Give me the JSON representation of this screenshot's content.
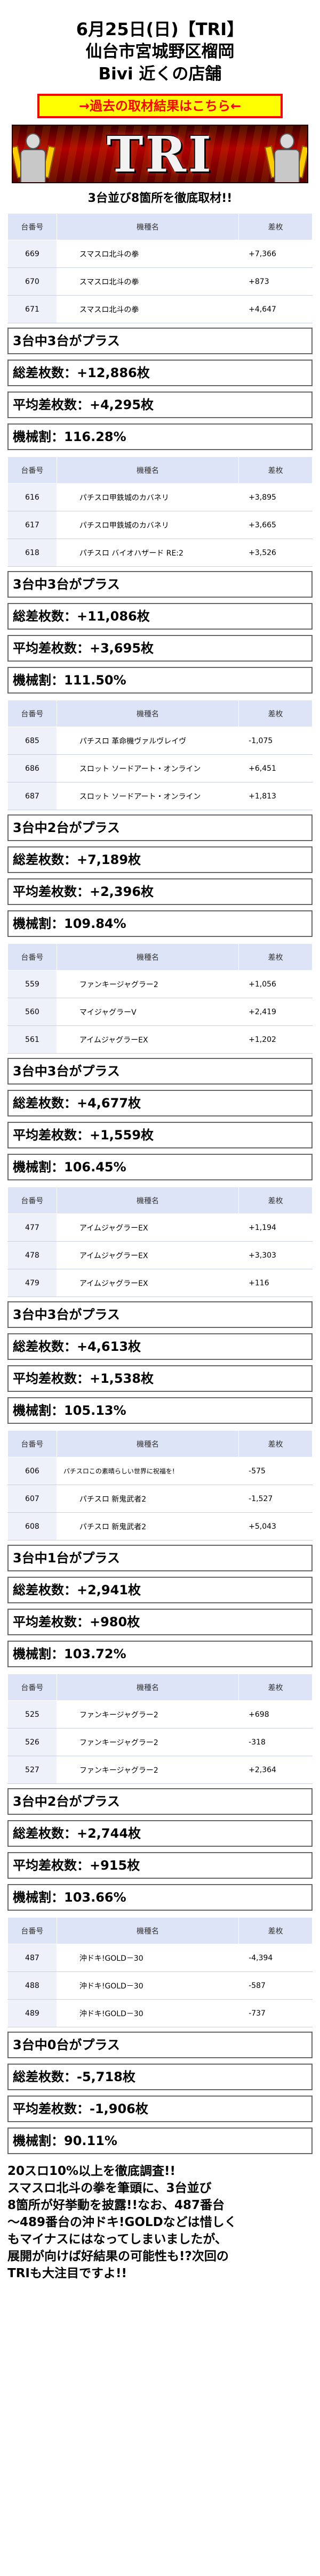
{
  "header": {
    "line1": "6月25日(日)【TRI】",
    "line2": "仙台市宮城野区榴岡",
    "line3": "Bivi 近くの店舗"
  },
  "past_link": "→過去の取材結果はこちら←",
  "logo_text": "TRI",
  "intro": "3台並び8箇所を徹底取材!!",
  "columns": {
    "num": "台番号",
    "name": "機種名",
    "diff": "差枚"
  },
  "groups": [
    {
      "rows": [
        {
          "num": "669",
          "name": "スマスロ北斗の拳",
          "diff": "+7,366"
        },
        {
          "num": "670",
          "name": "スマスロ北斗の拳",
          "diff": "+873"
        },
        {
          "num": "671",
          "name": "スマスロ北斗の拳",
          "diff": "+4,647"
        }
      ],
      "plus": "3台中3台がプラス",
      "total": "総差枚数：+12,886枚",
      "average": "平均差枚数：+4,295枚",
      "rate": "機械割：116.28%"
    },
    {
      "rows": [
        {
          "num": "616",
          "name": "パチスロ甲鉄城のカバネリ",
          "diff": "+3,895"
        },
        {
          "num": "617",
          "name": "パチスロ甲鉄城のカバネリ",
          "diff": "+3,665"
        },
        {
          "num": "618",
          "name": "パチスロ バイオハザード RE:2",
          "diff": "+3,526"
        }
      ],
      "plus": "3台中3台がプラス",
      "total": "総差枚数：+11,086枚",
      "average": "平均差枚数：+3,695枚",
      "rate": "機械割：111.50%"
    },
    {
      "rows": [
        {
          "num": "685",
          "name": "パチスロ 革命機ヴァルヴレイヴ",
          "diff": "-1,075"
        },
        {
          "num": "686",
          "name": "スロット ソードアート・オンライン",
          "diff": "+6,451"
        },
        {
          "num": "687",
          "name": "スロット ソードアート・オンライン",
          "diff": "+1,813"
        }
      ],
      "plus": "3台中2台がプラス",
      "total": "総差枚数：+7,189枚",
      "average": "平均差枚数：+2,396枚",
      "rate": "機械割：109.84%"
    },
    {
      "rows": [
        {
          "num": "559",
          "name": "ファンキージャグラー2",
          "diff": "+1,056"
        },
        {
          "num": "560",
          "name": "マイジャグラーV",
          "diff": "+2,419"
        },
        {
          "num": "561",
          "name": "アイムジャグラーEX",
          "diff": "+1,202"
        }
      ],
      "plus": "3台中3台がプラス",
      "total": "総差枚数：+4,677枚",
      "average": "平均差枚数：+1,559枚",
      "rate": "機械割：106.45%"
    },
    {
      "rows": [
        {
          "num": "477",
          "name": "アイムジャグラーEX",
          "diff": "+1,194"
        },
        {
          "num": "478",
          "name": "アイムジャグラーEX",
          "diff": "+3,303"
        },
        {
          "num": "479",
          "name": "アイムジャグラーEX",
          "diff": "+116"
        }
      ],
      "plus": "3台中3台がプラス",
      "total": "総差枚数：+4,613枚",
      "average": "平均差枚数：+1,538枚",
      "rate": "機械割：105.13%"
    },
    {
      "rows": [
        {
          "num": "606",
          "name": "パチスロこの素晴らしい世界に祝福を!",
          "diff": "-575",
          "small": true
        },
        {
          "num": "607",
          "name": "パチスロ 新鬼武者2",
          "diff": "-1,527"
        },
        {
          "num": "608",
          "name": "パチスロ 新鬼武者2",
          "diff": "+5,043"
        }
      ],
      "plus": "3台中1台がプラス",
      "total": "総差枚数：+2,941枚",
      "average": "平均差枚数：+980枚",
      "rate": "機械割：103.72%"
    },
    {
      "rows": [
        {
          "num": "525",
          "name": "ファンキージャグラー2",
          "diff": "+698"
        },
        {
          "num": "526",
          "name": "ファンキージャグラー2",
          "diff": "-318"
        },
        {
          "num": "527",
          "name": "ファンキージャグラー2",
          "diff": "+2,364"
        }
      ],
      "plus": "3台中2台がプラス",
      "total": "総差枚数：+2,744枚",
      "average": "平均差枚数：+915枚",
      "rate": "機械割：103.66%"
    },
    {
      "rows": [
        {
          "num": "487",
          "name": "沖ドキ!GOLD－30",
          "diff": "-4,394"
        },
        {
          "num": "488",
          "name": "沖ドキ!GOLD－30",
          "diff": "-587"
        },
        {
          "num": "489",
          "name": "沖ドキ!GOLD－30",
          "diff": "-737"
        }
      ],
      "plus": "3台中0台がプラス",
      "total": "総差枚数：-5,718枚",
      "average": "平均差枚数：-1,906枚",
      "rate": "機械割：90.11%"
    }
  ],
  "closing": [
    "20スロ10%以上を徹底調査!!",
    "スマスロ北斗の拳を筆頭に、3台並び",
    "8箇所が好挙動を披露!!なお、487番台",
    "～489番台の沖ドキ!GOLDなどは惜しく",
    "もマイナスにはなってしまいましたが、",
    "展開が向けば好結果の可能性も!?次回の",
    "TRIも大注目ですよ!!"
  ],
  "colors": {
    "banner_bg": "#ffff00",
    "banner_text": "#ff0000",
    "table_header_bg": "#dde4f7",
    "num_cell_bg": "#eef1fa"
  }
}
